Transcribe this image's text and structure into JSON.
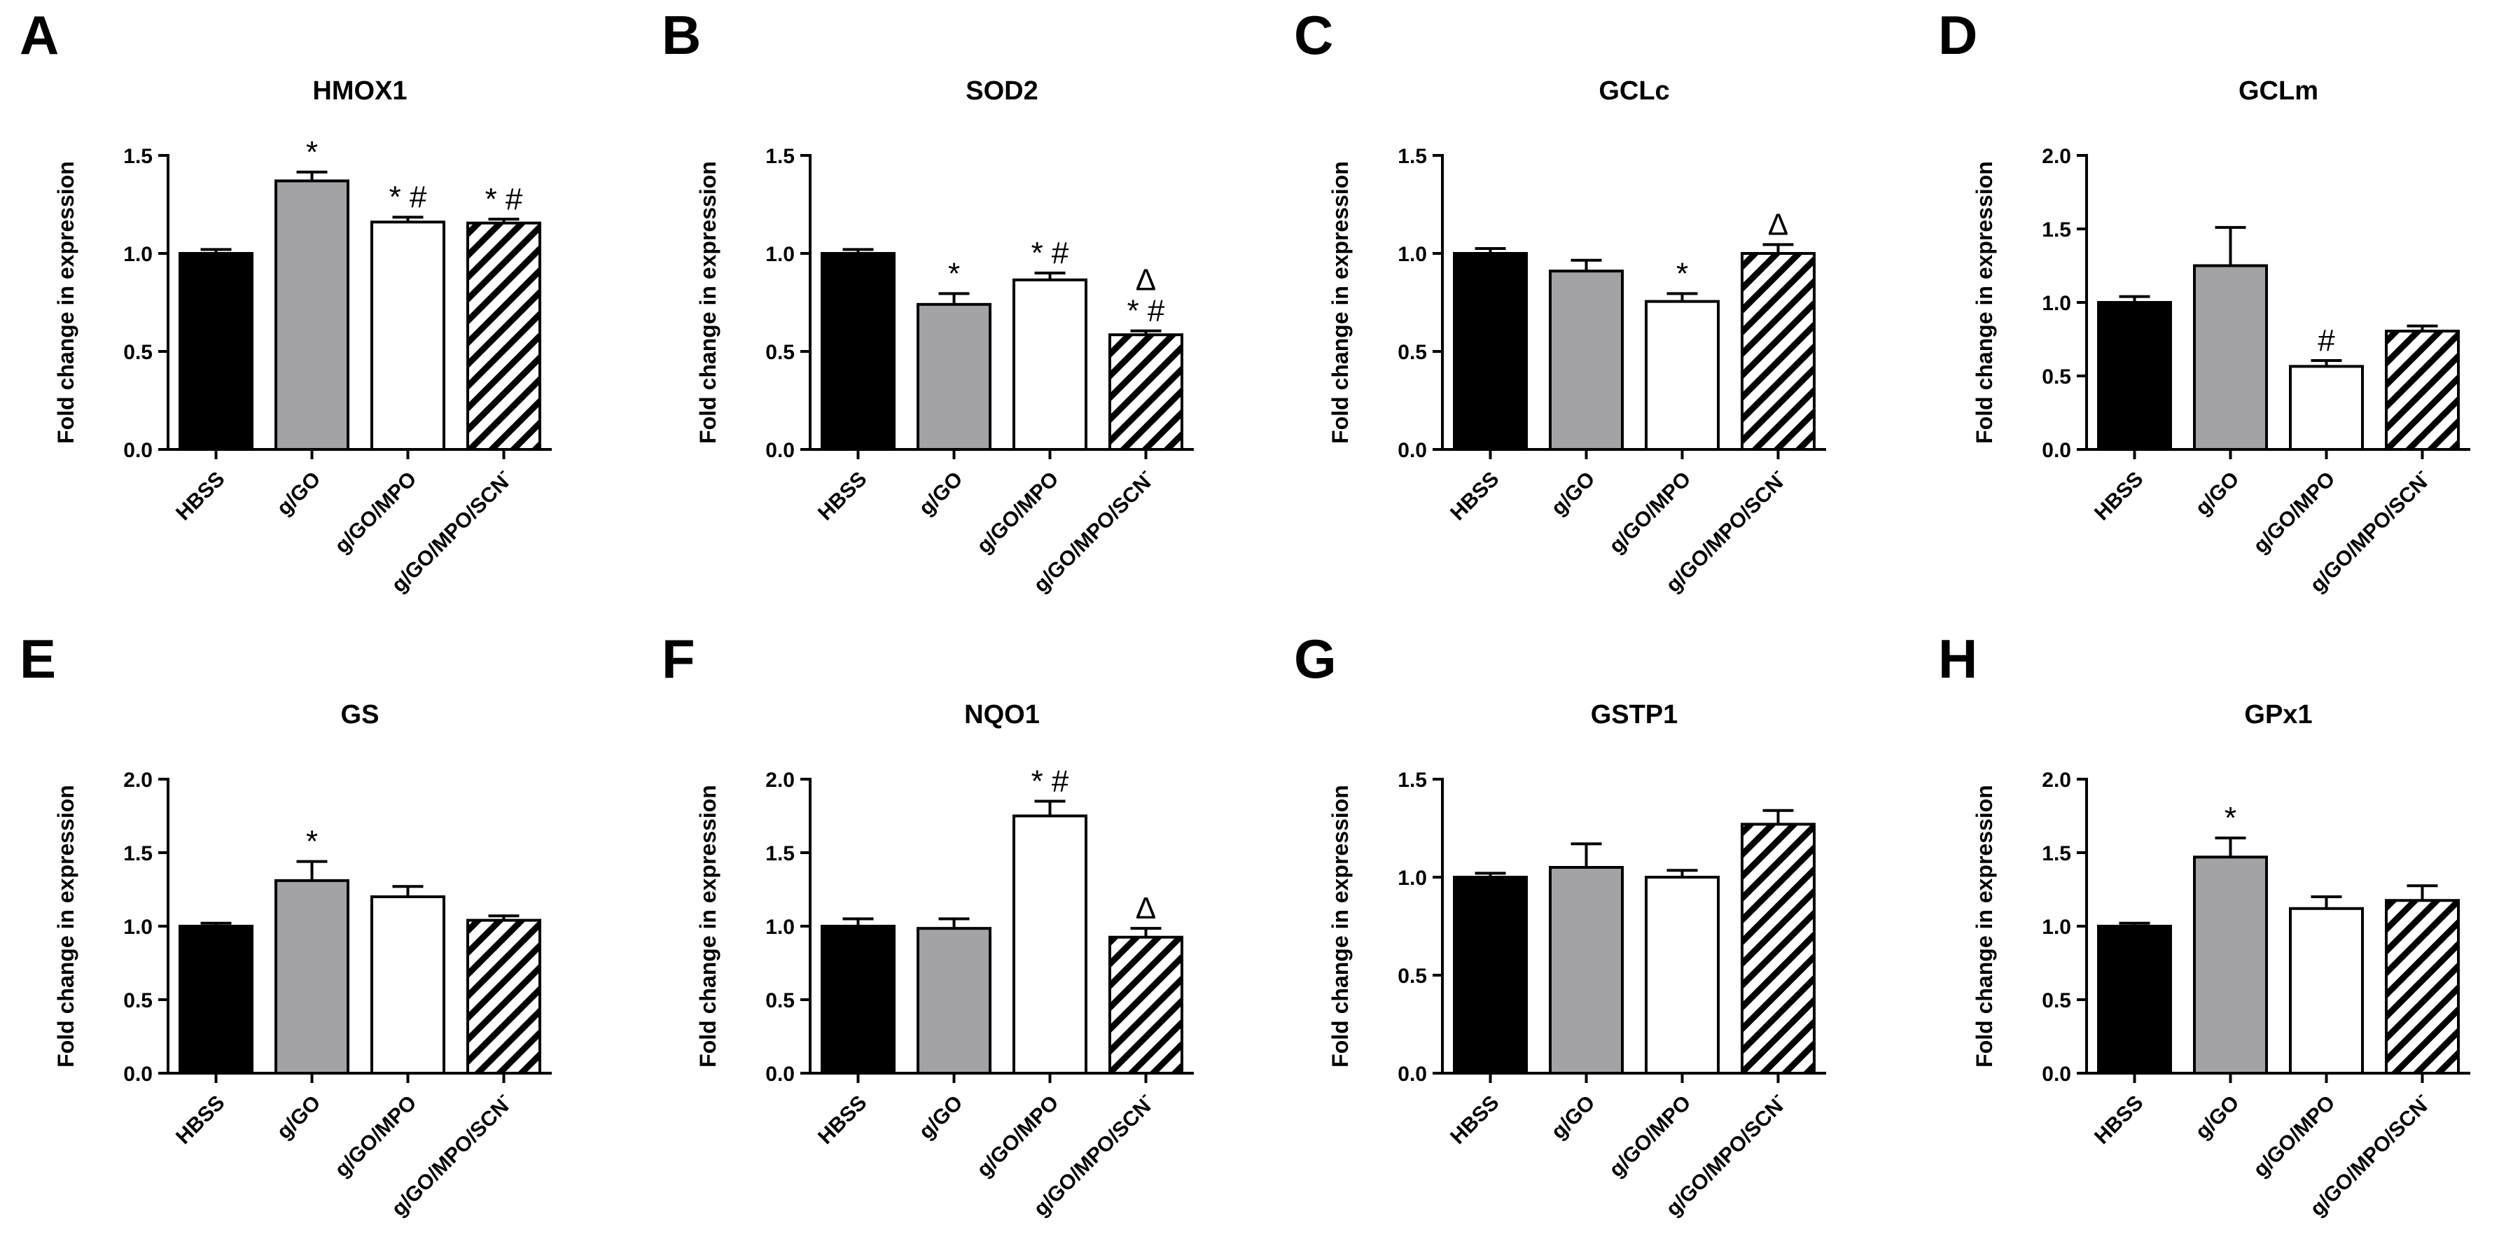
{
  "figure": {
    "ylabel": "Fold change in expression",
    "categories": [
      "HBSS",
      "g/GO",
      "g/GO/MPO",
      "g/GO/MPO/SCN"
    ],
    "category_superscript": {
      "index": 3,
      "text": "-"
    },
    "colors": {
      "HBSS": "#000000",
      "g/GO": "#a3a3a6",
      "g/GO/MPO": "#ffffff",
      "g/GO/MPO/SCN": "hatched",
      "axis": "#000000"
    }
  },
  "chart_data": [
    {
      "panel": "A",
      "type": "bar",
      "title": "HMOX1",
      "ylabel": "Fold change in expression",
      "ylim": [
        0,
        1.5
      ],
      "yticks": [
        "0.0",
        "0.5",
        "1.0",
        "1.5"
      ],
      "categories": [
        "HBSS",
        "g/GO",
        "g/GO/MPO",
        "g/GO/MPO/SCN"
      ],
      "values": [
        1.0,
        1.37,
        1.16,
        1.155
      ],
      "errors": [
        0.02,
        0.045,
        0.025,
        0.02
      ],
      "annotations": [
        "",
        "*",
        "* #",
        "* #"
      ]
    },
    {
      "panel": "B",
      "type": "bar",
      "title": "SOD2",
      "ylabel": "Fold change in expression",
      "ylim": [
        0,
        1.5
      ],
      "yticks": [
        "0.0",
        "0.5",
        "1.0",
        "1.5"
      ],
      "categories": [
        "HBSS",
        "g/GO",
        "g/GO/MPO",
        "g/GO/MPO/SCN"
      ],
      "values": [
        1.0,
        0.74,
        0.865,
        0.585
      ],
      "errors": [
        0.02,
        0.055,
        0.035,
        0.02
      ],
      "annotations": [
        "",
        "*",
        "* #",
        "Δ\n* #"
      ]
    },
    {
      "panel": "C",
      "type": "bar",
      "title": "GCLc",
      "ylabel": "Fold change in expression",
      "ylim": [
        0,
        1.5
      ],
      "yticks": [
        "0.0",
        "0.5",
        "1.0",
        "1.5"
      ],
      "categories": [
        "HBSS",
        "g/GO",
        "g/GO/MPO",
        "g/GO/MPO/SCN"
      ],
      "values": [
        1.0,
        0.91,
        0.755,
        1.0
      ],
      "errors": [
        0.025,
        0.055,
        0.04,
        0.045
      ],
      "annotations": [
        "",
        "",
        "*",
        "Δ"
      ]
    },
    {
      "panel": "D",
      "type": "bar",
      "title": "GCLm",
      "ylabel": "Fold change in expression",
      "ylim": [
        0,
        2.0
      ],
      "yticks": [
        "0.0",
        "0.5",
        "1.0",
        "1.5",
        "2.0"
      ],
      "categories": [
        "HBSS",
        "g/GO",
        "g/GO/MPO",
        "g/GO/MPO/SCN"
      ],
      "values": [
        1.0,
        1.25,
        0.565,
        0.805
      ],
      "errors": [
        0.04,
        0.26,
        0.04,
        0.035
      ],
      "annotations": [
        "",
        "",
        "#",
        ""
      ]
    },
    {
      "panel": "E",
      "type": "bar",
      "title": "GS",
      "ylabel": "Fold change in expression",
      "ylim": [
        0,
        2.0
      ],
      "yticks": [
        "0.0",
        "0.5",
        "1.0",
        "1.5",
        "2.0"
      ],
      "categories": [
        "HBSS",
        "g/GO",
        "g/GO/MPO",
        "g/GO/MPO/SCN"
      ],
      "values": [
        1.0,
        1.31,
        1.2,
        1.04
      ],
      "errors": [
        0.02,
        0.13,
        0.07,
        0.03
      ],
      "annotations": [
        "",
        "*",
        "",
        ""
      ]
    },
    {
      "panel": "F",
      "type": "bar",
      "title": "NQO1",
      "ylabel": "Fold change in expression",
      "ylim": [
        0,
        2.0
      ],
      "yticks": [
        "0.0",
        "0.5",
        "1.0",
        "1.5",
        "2.0"
      ],
      "categories": [
        "HBSS",
        "g/GO",
        "g/GO/MPO",
        "g/GO/MPO/SCN"
      ],
      "values": [
        1.0,
        0.985,
        1.75,
        0.925
      ],
      "errors": [
        0.05,
        0.065,
        0.1,
        0.06
      ],
      "annotations": [
        "",
        "",
        "* #",
        "Δ"
      ]
    },
    {
      "panel": "G",
      "type": "bar",
      "title": "GSTP1",
      "ylabel": "Fold change in expression",
      "ylim": [
        0,
        1.5
      ],
      "yticks": [
        "0.0",
        "0.5",
        "1.0",
        "1.5"
      ],
      "categories": [
        "HBSS",
        "g/GO",
        "g/GO/MPO",
        "g/GO/MPO/SCN"
      ],
      "values": [
        1.0,
        1.05,
        1.0,
        1.27
      ],
      "errors": [
        0.02,
        0.12,
        0.035,
        0.07
      ],
      "annotations": [
        "",
        "",
        "",
        ""
      ]
    },
    {
      "panel": "H",
      "type": "bar",
      "title": "GPx1",
      "ylabel": "Fold change in expression",
      "ylim": [
        0,
        2.0
      ],
      "yticks": [
        "0.0",
        "0.5",
        "1.0",
        "1.5",
        "2.0"
      ],
      "categories": [
        "HBSS",
        "g/GO",
        "g/GO/MPO",
        "g/GO/MPO/SCN"
      ],
      "values": [
        1.0,
        1.47,
        1.12,
        1.175
      ],
      "errors": [
        0.02,
        0.13,
        0.08,
        0.1
      ],
      "annotations": [
        "",
        "*",
        "",
        ""
      ]
    }
  ]
}
